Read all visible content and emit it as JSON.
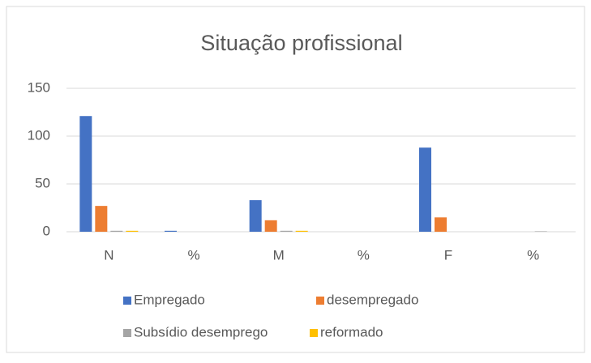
{
  "chart_data": {
    "type": "bar",
    "title": "Situação profissional",
    "categories": [
      "N",
      "%",
      "M",
      "%",
      "F",
      "%"
    ],
    "series": [
      {
        "name": "Empregado",
        "color": "#4472c4",
        "values": [
          121,
          1,
          33,
          0,
          88,
          0
        ]
      },
      {
        "name": "desempregado",
        "color": "#ed7d31",
        "values": [
          27,
          0,
          12,
          0,
          15,
          0
        ]
      },
      {
        "name": "Subsídio desemprego",
        "color": "#a5a5a5",
        "values": [
          1,
          0,
          1,
          0,
          0,
          0.5
        ]
      },
      {
        "name": "reformado",
        "color": "#ffc000",
        "values": [
          1,
          0,
          1,
          0,
          0,
          0
        ]
      }
    ],
    "ylim": [
      0,
      150
    ],
    "yticks": [
      0,
      50,
      100,
      150
    ],
    "grid": true
  }
}
